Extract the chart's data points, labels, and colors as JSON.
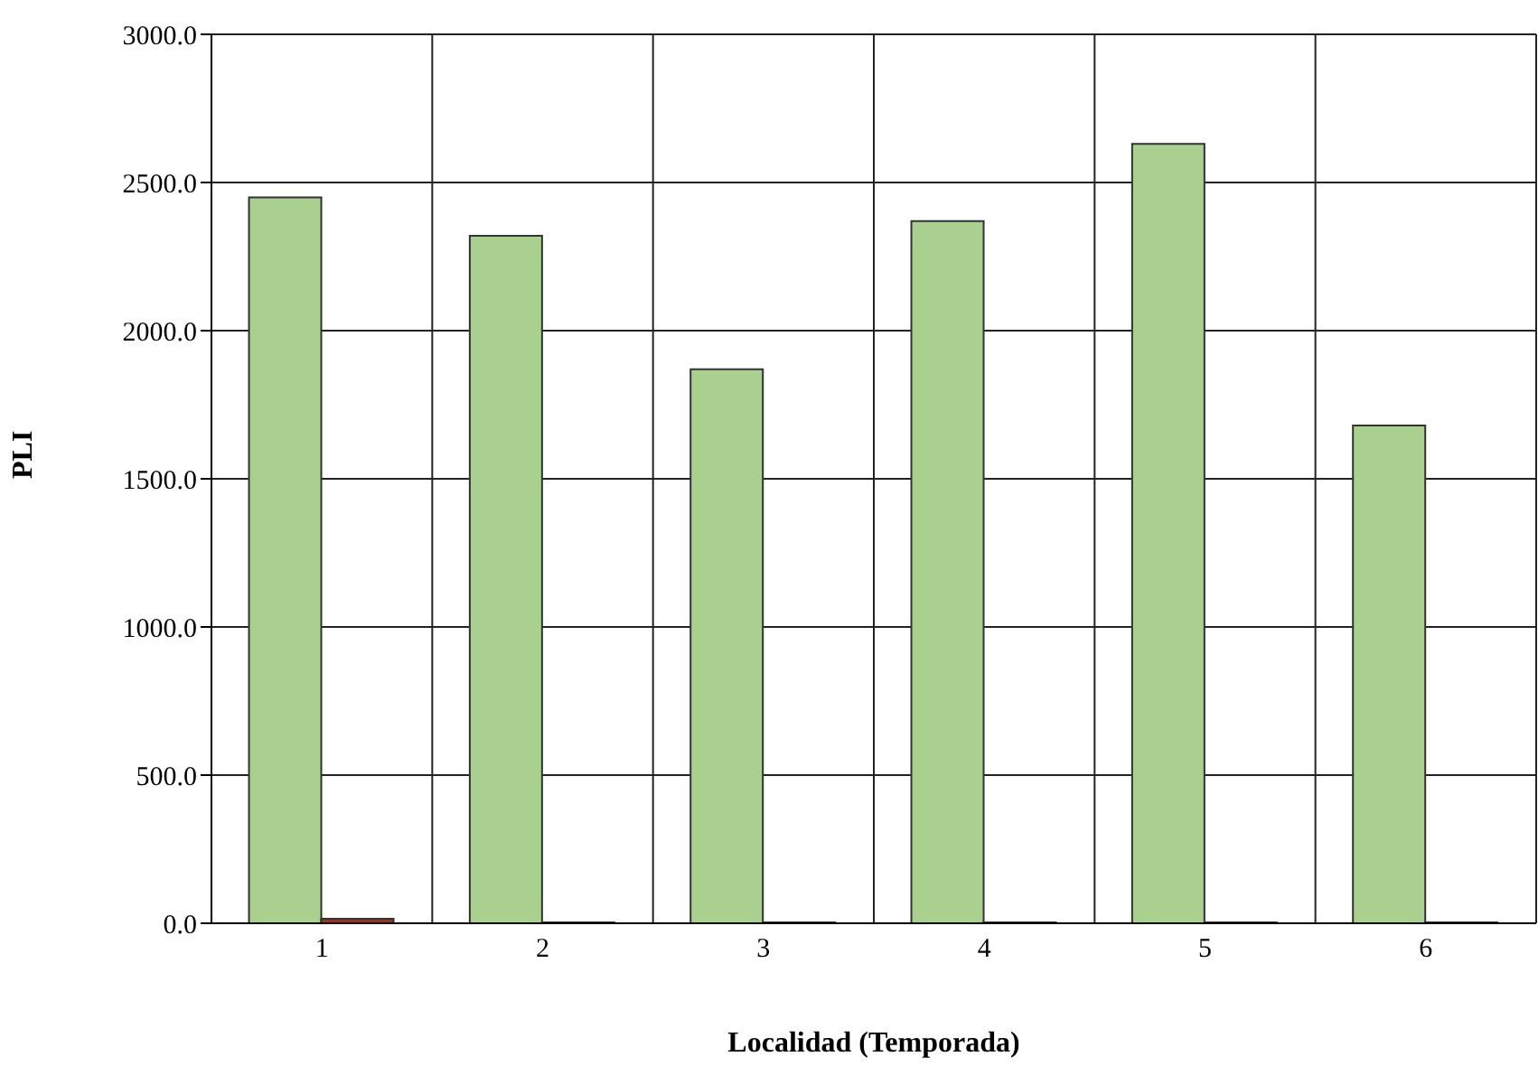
{
  "chart_data": {
    "type": "bar",
    "xlabel": "Localidad (Temporada)",
    "ylabel": "PLI",
    "categories": [
      "1",
      "2",
      "3",
      "4",
      "5",
      "6"
    ],
    "series": [
      {
        "color": "#a9d08e",
        "values": [
          2450,
          2320,
          1870,
          2370,
          2630,
          1680
        ]
      },
      {
        "color": "#8b3a2a",
        "values": [
          15,
          3,
          3,
          3,
          3,
          3
        ]
      }
    ],
    "ylim": [
      0,
      3000
    ],
    "yticks": [
      {
        "value": 0,
        "label": "0.0"
      },
      {
        "value": 500,
        "label": "500.0"
      },
      {
        "value": 1000,
        "label": "1000.0"
      },
      {
        "value": 1500,
        "label": "1500.0"
      },
      {
        "value": 2000,
        "label": "2000.0"
      },
      {
        "value": 2500,
        "label": "2500.0"
      },
      {
        "value": 3000,
        "label": "3000.0"
      }
    ],
    "grid": true
  }
}
